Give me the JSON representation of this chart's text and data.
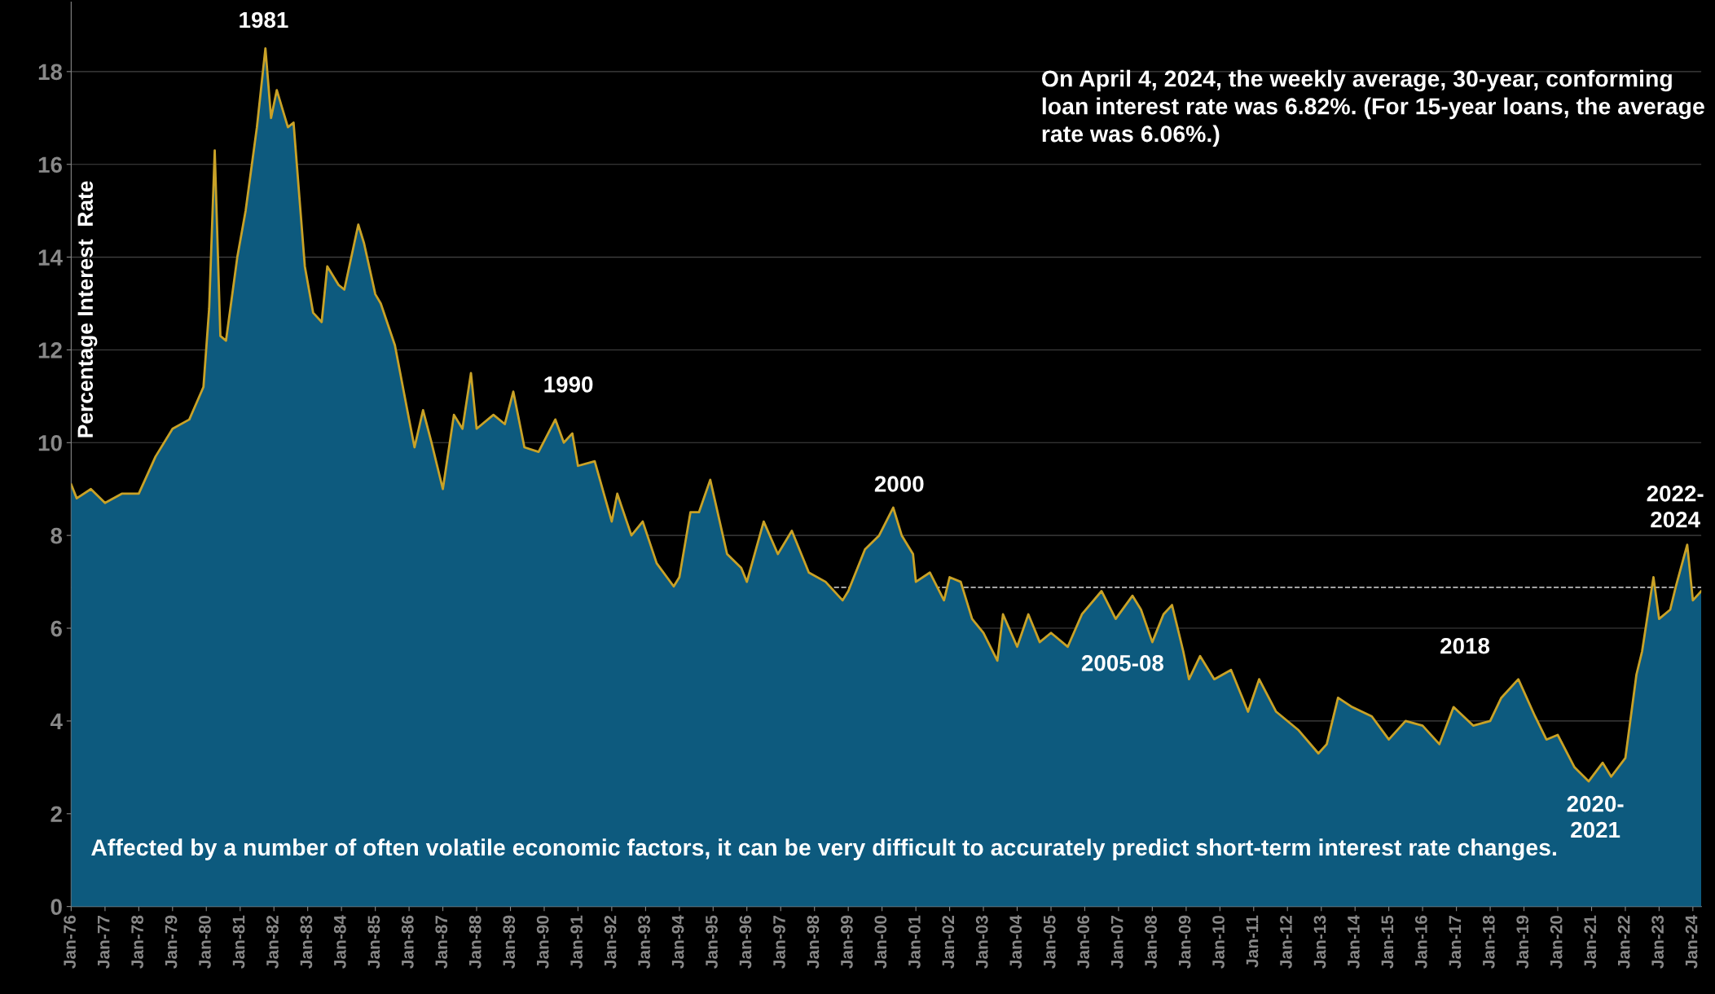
{
  "chart_data": {
    "type": "area",
    "ylabel": "Percentage Interest  Rate",
    "x": [
      "1976-01",
      "1976-03",
      "1976-08",
      "1977-01",
      "1977-07",
      "1978-01",
      "1978-07",
      "1979-01",
      "1979-07",
      "1979-12",
      "1980-02",
      "1980-04",
      "1980-06",
      "1980-08",
      "1980-12",
      "1981-03",
      "1981-07",
      "1981-10",
      "1981-12",
      "1982-02",
      "1982-06",
      "1982-08",
      "1982-12",
      "1983-03",
      "1983-06",
      "1983-08",
      "1983-12",
      "1984-02",
      "1984-07",
      "1984-09",
      "1985-01",
      "1985-03",
      "1985-08",
      "1986-01",
      "1986-03",
      "1986-06",
      "1986-09",
      "1987-01",
      "1987-05",
      "1987-08",
      "1987-11",
      "1988-01",
      "1988-07",
      "1988-11",
      "1989-02",
      "1989-06",
      "1989-11",
      "1990-05",
      "1990-08",
      "1990-11",
      "1991-01",
      "1991-07",
      "1992-01",
      "1992-03",
      "1992-08",
      "1992-12",
      "1993-05",
      "1993-11",
      "1994-01",
      "1994-05",
      "1994-08",
      "1994-12",
      "1995-06",
      "1995-11",
      "1996-01",
      "1996-07",
      "1996-12",
      "1997-05",
      "1997-11",
      "1998-05",
      "1998-11",
      "1999-01",
      "1999-07",
      "1999-12",
      "2000-05",
      "2000-08",
      "2000-12",
      "2001-01",
      "2001-06",
      "2001-11",
      "2002-01",
      "2002-05",
      "2002-09",
      "2003-01",
      "2003-06",
      "2003-08",
      "2004-01",
      "2004-05",
      "2004-09",
      "2005-01",
      "2005-07",
      "2005-12",
      "2006-07",
      "2006-12",
      "2007-06",
      "2007-09",
      "2008-01",
      "2008-05",
      "2008-08",
      "2008-12",
      "2009-02",
      "2009-06",
      "2009-11",
      "2010-05",
      "2010-11",
      "2011-03",
      "2011-09",
      "2012-05",
      "2012-12",
      "2013-03",
      "2013-07",
      "2013-12",
      "2014-07",
      "2015-01",
      "2015-07",
      "2016-01",
      "2016-07",
      "2016-12",
      "2017-07",
      "2018-01",
      "2018-05",
      "2018-11",
      "2019-05",
      "2019-09",
      "2020-01",
      "2020-07",
      "2020-12",
      "2021-05",
      "2021-08",
      "2022-01",
      "2022-05",
      "2022-07",
      "2022-11",
      "2023-01",
      "2023-05",
      "2023-07",
      "2023-11",
      "2024-01",
      "2024-04"
    ],
    "series": [
      {
        "color": "#0d5a7e",
        "values": [
          9.1,
          8.8,
          9.0,
          8.7,
          8.9,
          8.9,
          9.7,
          10.3,
          10.5,
          11.2,
          12.9,
          16.3,
          12.3,
          12.2,
          14.0,
          15.0,
          16.8,
          18.5,
          17.0,
          17.6,
          16.8,
          16.9,
          13.8,
          12.8,
          12.6,
          13.8,
          13.4,
          13.3,
          14.7,
          14.3,
          13.2,
          13.0,
          12.1,
          10.5,
          9.9,
          10.7,
          10.0,
          9.0,
          10.6,
          10.3,
          11.5,
          10.3,
          10.6,
          10.4,
          11.1,
          9.9,
          9.8,
          10.5,
          10.0,
          10.2,
          9.5,
          9.6,
          8.3,
          8.9,
          8.0,
          8.3,
          7.4,
          6.9,
          7.1,
          8.5,
          8.5,
          9.2,
          7.6,
          7.3,
          7.0,
          8.3,
          7.6,
          8.1,
          7.2,
          7.0,
          6.6,
          6.8,
          7.7,
          8.0,
          8.6,
          8.0,
          7.6,
          7.0,
          7.2,
          6.6,
          7.1,
          7.0,
          6.2,
          5.9,
          5.3,
          6.3,
          5.6,
          6.3,
          5.7,
          5.9,
          5.6,
          6.3,
          6.8,
          6.2,
          6.7,
          6.4,
          5.7,
          6.3,
          6.5,
          5.5,
          4.9,
          5.4,
          4.9,
          5.1,
          4.2,
          4.9,
          4.2,
          3.8,
          3.3,
          3.5,
          4.5,
          4.3,
          4.1,
          3.6,
          4.0,
          3.9,
          3.5,
          4.3,
          3.9,
          4.0,
          4.5,
          4.9,
          4.1,
          3.6,
          3.7,
          3.0,
          2.7,
          3.1,
          2.8,
          3.2,
          5.0,
          5.5,
          7.1,
          6.2,
          6.4,
          6.9,
          7.8,
          6.6,
          6.8
        ]
      },
      {
        "type": "line",
        "color": "#c9a227",
        "values": [
          9.1,
          8.8,
          9.0,
          8.7,
          8.9,
          8.9,
          9.7,
          10.3,
          10.5,
          11.2,
          12.9,
          16.3,
          12.3,
          12.2,
          14.0,
          15.0,
          16.8,
          18.5,
          17.0,
          17.6,
          16.8,
          16.9,
          13.8,
          12.8,
          12.6,
          13.8,
          13.4,
          13.3,
          14.7,
          14.3,
          13.2,
          13.0,
          12.1,
          10.5,
          9.9,
          10.7,
          10.0,
          9.0,
          10.6,
          10.3,
          11.5,
          10.3,
          10.6,
          10.4,
          11.1,
          9.9,
          9.8,
          10.5,
          10.0,
          10.2,
          9.5,
          9.6,
          8.3,
          8.9,
          8.0,
          8.3,
          7.4,
          6.9,
          7.1,
          8.5,
          8.5,
          9.2,
          7.6,
          7.3,
          7.0,
          8.3,
          7.6,
          8.1,
          7.2,
          7.0,
          6.6,
          6.8,
          7.7,
          8.0,
          8.6,
          8.0,
          7.6,
          7.0,
          7.2,
          6.6,
          7.1,
          7.0,
          6.2,
          5.9,
          5.3,
          6.3,
          5.6,
          6.3,
          5.7,
          5.9,
          5.6,
          6.3,
          6.8,
          6.2,
          6.7,
          6.4,
          5.7,
          6.3,
          6.5,
          5.5,
          4.9,
          5.4,
          4.9,
          5.1,
          4.2,
          4.9,
          4.2,
          3.8,
          3.3,
          3.5,
          4.5,
          4.3,
          4.1,
          3.6,
          4.0,
          3.9,
          3.5,
          4.3,
          3.9,
          4.0,
          4.5,
          4.9,
          4.1,
          3.6,
          3.7,
          3.0,
          2.7,
          3.1,
          2.8,
          3.2,
          5.0,
          5.5,
          7.1,
          6.2,
          6.4,
          6.9,
          7.8,
          6.6,
          6.8
        ]
      }
    ],
    "xlim": [
      "1976-01",
      "2024-04"
    ],
    "xticks": [
      {
        "value": "1976-01",
        "label": "Jan-76"
      },
      {
        "value": "1977-01",
        "label": "Jan-77"
      },
      {
        "value": "1978-01",
        "label": "Jan-78"
      },
      {
        "value": "1979-01",
        "label": "Jan-79"
      },
      {
        "value": "1980-01",
        "label": "Jan-80"
      },
      {
        "value": "1981-01",
        "label": "Jan-81"
      },
      {
        "value": "1982-01",
        "label": "Jan-82"
      },
      {
        "value": "1983-01",
        "label": "Jan-83"
      },
      {
        "value": "1984-01",
        "label": "Jan-84"
      },
      {
        "value": "1985-01",
        "label": "Jan-85"
      },
      {
        "value": "1986-01",
        "label": "Jan-86"
      },
      {
        "value": "1987-01",
        "label": "Jan-87"
      },
      {
        "value": "1988-01",
        "label": "Jan-88"
      },
      {
        "value": "1989-01",
        "label": "Jan-89"
      },
      {
        "value": "1990-01",
        "label": "Jan-90"
      },
      {
        "value": "1991-01",
        "label": "Jan-91"
      },
      {
        "value": "1992-01",
        "label": "Jan-92"
      },
      {
        "value": "1993-01",
        "label": "Jan-93"
      },
      {
        "value": "1994-01",
        "label": "Jan-94"
      },
      {
        "value": "1995-01",
        "label": "Jan-95"
      },
      {
        "value": "1996-01",
        "label": "Jan-96"
      },
      {
        "value": "1997-01",
        "label": "Jan-97"
      },
      {
        "value": "1998-01",
        "label": "Jan-98"
      },
      {
        "value": "1999-01",
        "label": "Jan-99"
      },
      {
        "value": "2000-01",
        "label": "Jan-00"
      },
      {
        "value": "2001-01",
        "label": "Jan-01"
      },
      {
        "value": "2002-01",
        "label": "Jan-02"
      },
      {
        "value": "2003-01",
        "label": "Jan-03"
      },
      {
        "value": "2004-01",
        "label": "Jan-04"
      },
      {
        "value": "2005-01",
        "label": "Jan-05"
      },
      {
        "value": "2006-01",
        "label": "Jan-06"
      },
      {
        "value": "2007-01",
        "label": "Jan-07"
      },
      {
        "value": "2008-01",
        "label": "Jan-08"
      },
      {
        "value": "2009-01",
        "label": "Jan-09"
      },
      {
        "value": "2010-01",
        "label": "Jan-10"
      },
      {
        "value": "2011-01",
        "label": "Jan-11"
      },
      {
        "value": "2012-01",
        "label": "Jan-12"
      },
      {
        "value": "2013-01",
        "label": "Jan-13"
      },
      {
        "value": "2014-01",
        "label": "Jan-14"
      },
      {
        "value": "2015-01",
        "label": "Jan-15"
      },
      {
        "value": "2016-01",
        "label": "Jan-16"
      },
      {
        "value": "2017-01",
        "label": "Jan-17"
      },
      {
        "value": "2018-01",
        "label": "Jan-18"
      },
      {
        "value": "2019-01",
        "label": "Jan-19"
      },
      {
        "value": "2020-01",
        "label": "Jan-20"
      },
      {
        "value": "2021-01",
        "label": "Jan-21"
      },
      {
        "value": "2022-01",
        "label": "Jan-22"
      },
      {
        "value": "2023-01",
        "label": "Jan-23"
      },
      {
        "value": "2024-01",
        "label": "Jan-24"
      }
    ],
    "ylim": [
      0,
      19.5
    ],
    "yticks": [
      0,
      2,
      4,
      6,
      8,
      10,
      12,
      14,
      16,
      18
    ],
    "grid": "y",
    "ref_lines": [
      {
        "axis": "y",
        "value": 6.88,
        "label": null,
        "color": "#bbbbbb",
        "line_style": "dashed"
      }
    ],
    "annotations": [
      "On April 4, 2024, the weekly average, 30-year, conforming loan interest rate was 6.82%. (For 15-year loans, the average rate was 6.06%.)",
      "Affected by a number of often volatile economic factors, it can be very difficult to accurately predict short-term interest rate changes.",
      "1981",
      "1990",
      "2000",
      "2005-08",
      "2018",
      "2020-\n2021",
      "2022-\n2024"
    ]
  }
}
